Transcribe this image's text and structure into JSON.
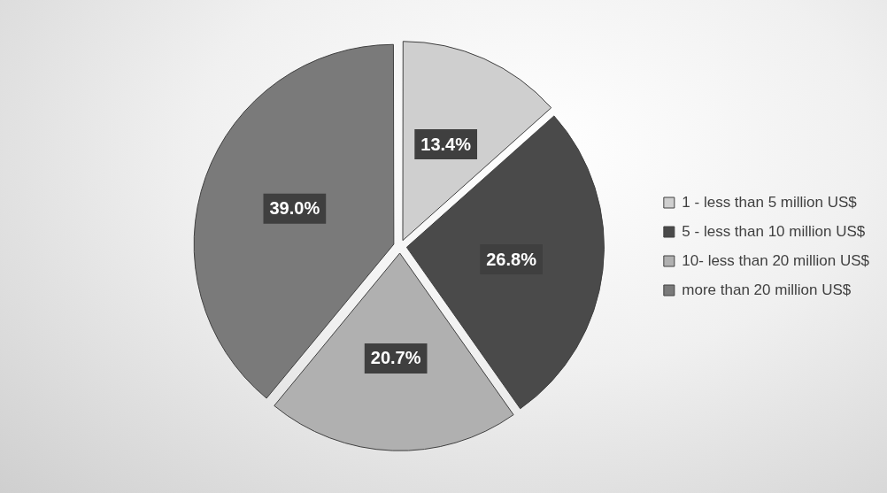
{
  "chart_data": {
    "type": "pie",
    "categories": [
      "1 - less than 5 million US$",
      "5 - less than 10 million US$",
      "10- less than 20 million US$",
      "more than 20 million US$"
    ],
    "values": [
      13.4,
      26.8,
      20.7,
      39.0
    ],
    "colors": [
      "#cfcfcf",
      "#4a4a4a",
      "#b0b0b0",
      "#7a7a7a"
    ],
    "value_labels": [
      "13.4%",
      "26.8%",
      "20.7%",
      "39.0%"
    ],
    "legend": "right"
  }
}
